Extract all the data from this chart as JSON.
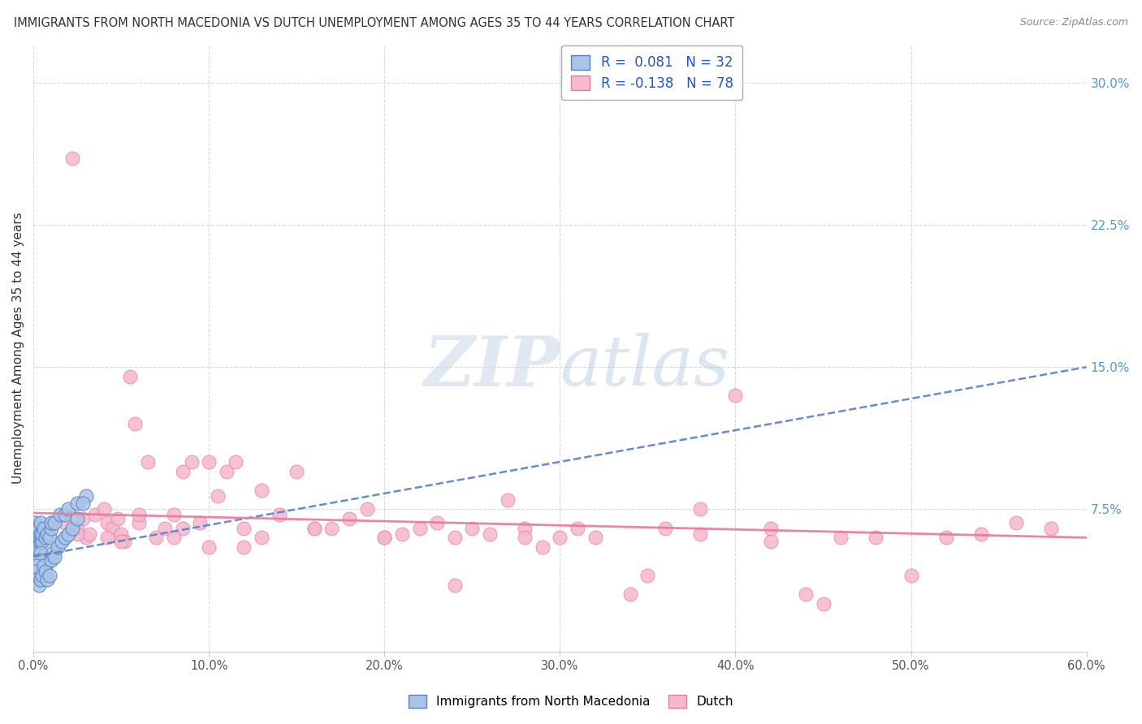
{
  "title": "IMMIGRANTS FROM NORTH MACEDONIA VS DUTCH UNEMPLOYMENT AMONG AGES 35 TO 44 YEARS CORRELATION CHART",
  "source": "Source: ZipAtlas.com",
  "ylabel": "Unemployment Among Ages 35 to 44 years",
  "xlim": [
    0.0,
    0.6
  ],
  "ylim": [
    0.0,
    0.32
  ],
  "xticks": [
    0.0,
    0.1,
    0.2,
    0.3,
    0.4,
    0.5,
    0.6
  ],
  "xticklabels": [
    "0.0%",
    "10.0%",
    "20.0%",
    "30.0%",
    "40.0%",
    "50.0%",
    "60.0%"
  ],
  "yticks_right": [
    0.075,
    0.15,
    0.225,
    0.3
  ],
  "ytick_right_labels": [
    "7.5%",
    "15.0%",
    "22.5%",
    "30.0%"
  ],
  "series1_label": "Immigrants from North Macedonia",
  "series1_R": 0.081,
  "series1_N": 32,
  "series1_color": "#aac4e8",
  "series1_edge_color": "#5580c0",
  "series1_line_color": "#5580c8",
  "series2_label": "Dutch",
  "series2_R": -0.138,
  "series2_N": 78,
  "series2_color": "#f5b8cc",
  "series2_edge_color": "#e878a0",
  "series2_line_color": "#e878a0",
  "watermark_zip": "ZIP",
  "watermark_atlas": "atlas",
  "background_color": "#ffffff",
  "grid_color": "#d8d8d8",
  "title_color": "#333333",
  "source_color": "#888888",
  "ylabel_color": "#333333",
  "ytick_color": "#5599cc",
  "xtick_color": "#555555",
  "legend_text_color": "#2255cc",
  "series1_x": [
    0.001,
    0.001,
    0.001,
    0.001,
    0.001,
    0.002,
    0.002,
    0.002,
    0.002,
    0.002,
    0.003,
    0.003,
    0.003,
    0.003,
    0.004,
    0.004,
    0.004,
    0.004,
    0.005,
    0.005,
    0.006,
    0.007,
    0.008,
    0.009,
    0.01,
    0.01,
    0.012,
    0.015,
    0.018,
    0.02,
    0.025,
    0.03
  ],
  "series1_y": [
    0.065,
    0.06,
    0.055,
    0.058,
    0.068,
    0.062,
    0.06,
    0.058,
    0.065,
    0.055,
    0.062,
    0.058,
    0.06,
    0.065,
    0.058,
    0.06,
    0.062,
    0.068,
    0.058,
    0.062,
    0.065,
    0.06,
    0.062,
    0.06,
    0.065,
    0.068,
    0.068,
    0.072,
    0.072,
    0.075,
    0.078,
    0.082
  ],
  "series1_extra_x": [
    0.001,
    0.002,
    0.002,
    0.003,
    0.004,
    0.005,
    0.006,
    0.007,
    0.008,
    0.003,
    0.004,
    0.003,
    0.002,
    0.001,
    0.002,
    0.003,
    0.004,
    0.005,
    0.006,
    0.007,
    0.008,
    0.009,
    0.01,
    0.011,
    0.012,
    0.014,
    0.016,
    0.018,
    0.02,
    0.022,
    0.025,
    0.028
  ],
  "series1_extra_y": [
    0.042,
    0.038,
    0.04,
    0.042,
    0.038,
    0.04,
    0.042,
    0.045,
    0.048,
    0.05,
    0.052,
    0.048,
    0.045,
    0.042,
    0.038,
    0.035,
    0.038,
    0.04,
    0.045,
    0.042,
    0.038,
    0.04,
    0.048,
    0.052,
    0.05,
    0.055,
    0.058,
    0.06,
    0.062,
    0.065,
    0.07,
    0.078
  ],
  "series2_x": [
    0.018,
    0.022,
    0.025,
    0.028,
    0.03,
    0.032,
    0.035,
    0.04,
    0.042,
    0.045,
    0.048,
    0.05,
    0.052,
    0.055,
    0.058,
    0.06,
    0.065,
    0.07,
    0.075,
    0.08,
    0.085,
    0.09,
    0.095,
    0.1,
    0.105,
    0.11,
    0.115,
    0.12,
    0.13,
    0.14,
    0.15,
    0.16,
    0.17,
    0.18,
    0.19,
    0.2,
    0.21,
    0.22,
    0.23,
    0.24,
    0.25,
    0.26,
    0.27,
    0.28,
    0.29,
    0.3,
    0.32,
    0.34,
    0.36,
    0.38,
    0.4,
    0.42,
    0.44,
    0.46,
    0.48,
    0.5,
    0.52,
    0.54,
    0.56,
    0.58,
    0.35,
    0.42,
    0.45,
    0.38,
    0.31,
    0.28,
    0.24,
    0.2,
    0.16,
    0.12,
    0.085,
    0.05,
    0.025,
    0.042,
    0.06,
    0.08,
    0.1,
    0.13
  ],
  "series2_y": [
    0.068,
    0.26,
    0.065,
    0.07,
    0.06,
    0.062,
    0.072,
    0.075,
    0.068,
    0.065,
    0.07,
    0.062,
    0.058,
    0.145,
    0.12,
    0.068,
    0.1,
    0.06,
    0.065,
    0.072,
    0.095,
    0.1,
    0.068,
    0.1,
    0.082,
    0.095,
    0.1,
    0.065,
    0.085,
    0.072,
    0.095,
    0.065,
    0.065,
    0.07,
    0.075,
    0.06,
    0.062,
    0.065,
    0.068,
    0.035,
    0.065,
    0.062,
    0.08,
    0.065,
    0.055,
    0.06,
    0.06,
    0.03,
    0.065,
    0.062,
    0.135,
    0.058,
    0.03,
    0.06,
    0.06,
    0.04,
    0.06,
    0.062,
    0.068,
    0.065,
    0.04,
    0.065,
    0.025,
    0.075,
    0.065,
    0.06,
    0.06,
    0.06,
    0.065,
    0.055,
    0.065,
    0.058,
    0.062,
    0.06,
    0.072,
    0.06,
    0.055,
    0.06
  ],
  "trend1_x0": 0.0,
  "trend1_x1": 0.6,
  "trend1_y0": 0.05,
  "trend1_y1": 0.15,
  "trend2_x0": 0.0,
  "trend2_x1": 0.6,
  "trend2_y0": 0.073,
  "trend2_y1": 0.06
}
